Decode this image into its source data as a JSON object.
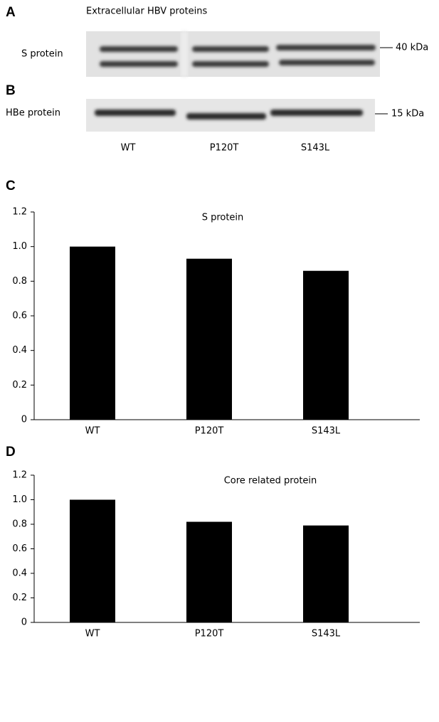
{
  "panels": {
    "a": "A",
    "b": "B",
    "c": "C",
    "d": "D"
  },
  "blot": {
    "title": "Extracellular HBV proteins",
    "rows": [
      {
        "label": "S protein",
        "marker": "40 kDa"
      },
      {
        "label": "HBe protein",
        "marker": "15 kDa"
      }
    ],
    "lanes": [
      "WT",
      "P120T",
      "S143L"
    ]
  },
  "chart_data": [
    {
      "type": "bar",
      "title": "S protein",
      "categories": [
        "WT",
        "P120T",
        "S143L"
      ],
      "values": [
        1.0,
        0.93,
        0.86
      ],
      "color": "#000000",
      "ylim": [
        0,
        1.2
      ],
      "yticks": [
        0,
        0.2,
        0.4,
        0.6,
        0.8,
        {
          "value": 1,
          "label": "1.0"
        },
        1.2
      ]
    },
    {
      "type": "bar",
      "title": "Core related protein",
      "categories": [
        "WT",
        "P120T",
        "S143L"
      ],
      "values": [
        1.0,
        0.82,
        0.79
      ],
      "color": "#000000",
      "ylim": [
        0,
        1.2
      ],
      "yticks": [
        0,
        0.2,
        0.4,
        0.6,
        0.8,
        {
          "value": 1,
          "label": "1.0"
        },
        1.2
      ]
    }
  ]
}
